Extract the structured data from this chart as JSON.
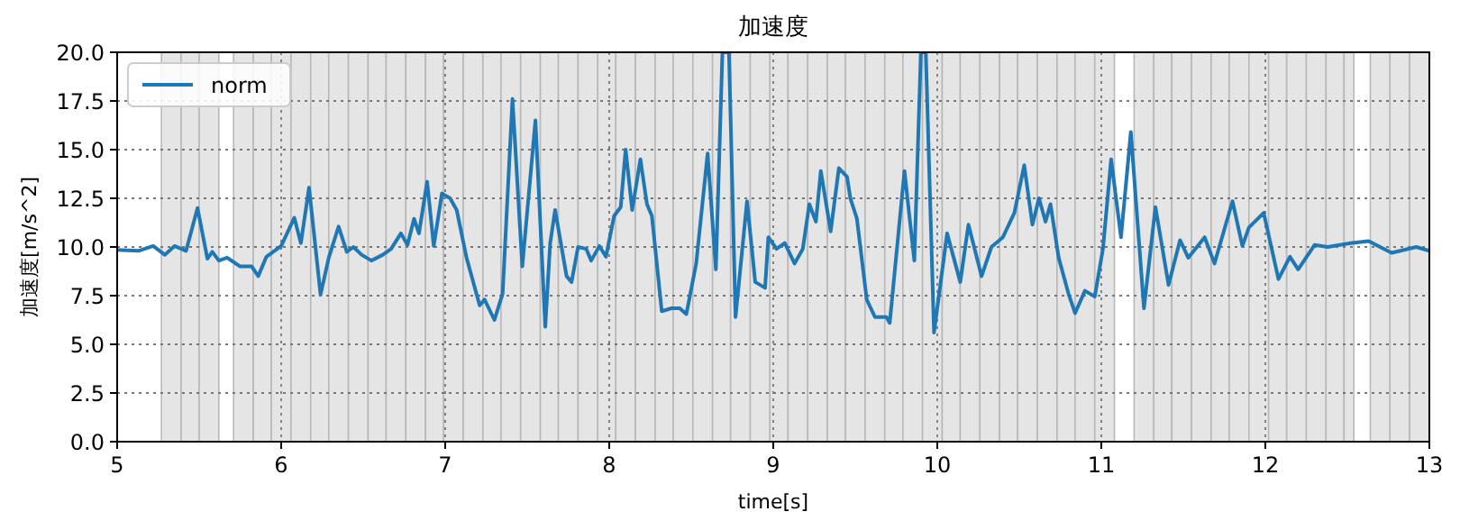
{
  "chart_data": {
    "type": "line",
    "title": "加速度",
    "xlabel": "time[s]",
    "ylabel": "加速度[m/s^2]",
    "xlim": [
      5,
      13
    ],
    "ylim": [
      0,
      20
    ],
    "xticks": [
      5,
      6,
      7,
      8,
      9,
      10,
      11,
      12,
      13
    ],
    "yticks": [
      {
        "value": 0,
        "label": "0.0"
      },
      {
        "value": 2.5,
        "label": "2.5"
      },
      {
        "value": 5,
        "label": "5.0"
      },
      {
        "value": 7.5,
        "label": "7.5"
      },
      {
        "value": 10,
        "label": "10.0"
      },
      {
        "value": 12.5,
        "label": "12.5"
      },
      {
        "value": 15,
        "label": "15.0"
      },
      {
        "value": 17.5,
        "label": "17.5"
      },
      {
        "value": 20,
        "label": "20.0"
      }
    ],
    "grid": true,
    "legend": "top left",
    "series": [
      {
        "name": "norm",
        "color": "#1f77b4",
        "x": [
          5.0,
          5.13,
          5.22,
          5.29,
          5.35,
          5.42,
          5.49,
          5.55,
          5.58,
          5.62,
          5.67,
          5.75,
          5.82,
          5.86,
          5.91,
          6.0,
          6.08,
          6.12,
          6.17,
          6.24,
          6.29,
          6.35,
          6.4,
          6.44,
          6.49,
          6.55,
          6.62,
          6.67,
          6.73,
          6.77,
          6.81,
          6.84,
          6.89,
          6.93,
          6.98,
          7.03,
          7.07,
          7.13,
          7.21,
          7.24,
          7.3,
          7.35,
          7.41,
          7.47,
          7.55,
          7.61,
          7.64,
          7.67,
          7.74,
          7.77,
          7.81,
          7.86,
          7.89,
          7.94,
          7.98,
          8.03,
          8.07,
          8.1,
          8.14,
          8.19,
          8.23,
          8.26,
          8.32,
          8.38,
          8.43,
          8.47,
          8.53,
          8.6,
          8.65,
          8.69,
          8.73,
          8.77,
          8.84,
          8.89,
          8.95,
          8.97,
          9.02,
          9.07,
          9.13,
          9.18,
          9.22,
          9.26,
          9.29,
          9.35,
          9.4,
          9.45,
          9.47,
          9.51,
          9.57,
          9.62,
          9.69,
          9.71,
          9.8,
          9.86,
          9.9,
          9.93,
          9.98,
          10.06,
          10.14,
          10.19,
          10.27,
          10.33,
          10.4,
          10.47,
          10.53,
          10.58,
          10.62,
          10.66,
          10.69,
          10.74,
          10.8,
          10.84,
          10.9,
          10.96,
          11.01,
          11.06,
          11.12,
          11.18,
          11.26,
          11.33,
          11.41,
          11.48,
          11.53,
          11.63,
          11.69,
          11.8,
          11.86,
          11.9,
          11.99,
          12.08,
          12.15,
          12.2,
          12.3,
          12.38,
          12.52,
          12.63,
          12.77,
          12.92,
          13.0
        ],
        "values": [
          9.85,
          9.8,
          10.05,
          9.6,
          10.05,
          9.8,
          12.0,
          9.4,
          9.75,
          9.3,
          9.45,
          9.0,
          9.0,
          8.5,
          9.5,
          10.05,
          11.5,
          10.2,
          13.05,
          7.55,
          9.45,
          11.05,
          9.75,
          10.0,
          9.6,
          9.3,
          9.6,
          9.9,
          10.7,
          10.1,
          11.45,
          10.7,
          13.35,
          10.05,
          12.75,
          12.5,
          11.9,
          9.45,
          7.0,
          7.3,
          6.25,
          7.6,
          17.6,
          9.0,
          16.5,
          5.9,
          10.2,
          11.9,
          8.5,
          8.2,
          10.0,
          9.9,
          9.3,
          10.05,
          9.5,
          11.6,
          12.05,
          15.0,
          11.9,
          14.5,
          12.2,
          11.6,
          6.7,
          6.85,
          6.85,
          6.55,
          9.15,
          14.8,
          8.85,
          20.0,
          20.0,
          6.4,
          12.35,
          8.2,
          7.9,
          10.5,
          9.9,
          10.2,
          9.15,
          9.9,
          12.2,
          11.3,
          13.9,
          10.8,
          14.05,
          13.6,
          12.5,
          11.45,
          7.3,
          6.4,
          6.4,
          6.1,
          13.9,
          9.3,
          20.0,
          20.0,
          5.6,
          10.7,
          8.2,
          11.15,
          8.5,
          10.0,
          10.5,
          11.75,
          14.2,
          11.15,
          12.5,
          11.3,
          12.2,
          9.45,
          7.6,
          6.6,
          7.75,
          7.45,
          9.9,
          14.5,
          10.5,
          15.9,
          6.85,
          12.05,
          8.05,
          10.35,
          9.45,
          10.5,
          9.15,
          12.35,
          10.05,
          11.0,
          11.75,
          8.35,
          9.5,
          8.85,
          10.1,
          10.0,
          10.2,
          10.3,
          9.7,
          10.0,
          9.8
        ]
      }
    ],
    "bands": [
      {
        "axis": "x",
        "from": 5.27,
        "to": 5.39,
        "color": "#e5e5e5"
      },
      {
        "axis": "x",
        "from": 5.39,
        "to": 5.5,
        "color": "#e5e5e5"
      },
      {
        "axis": "x",
        "from": 5.5,
        "to": 5.62,
        "color": "#e5e5e5"
      },
      {
        "axis": "x",
        "from": 5.71,
        "to": 5.83,
        "color": "#e5e5e5"
      },
      {
        "axis": "x",
        "from": 5.83,
        "to": 5.94,
        "color": "#e5e5e5"
      },
      {
        "axis": "x",
        "from": 5.94,
        "to": 6.06,
        "color": "#e5e5e5"
      },
      {
        "axis": "x",
        "from": 6.06,
        "to": 6.18,
        "color": "#e5e5e5"
      },
      {
        "axis": "x",
        "from": 6.18,
        "to": 6.29,
        "color": "#e5e5e5"
      },
      {
        "axis": "x",
        "from": 6.29,
        "to": 6.41,
        "color": "#e5e5e5"
      },
      {
        "axis": "x",
        "from": 6.41,
        "to": 6.53,
        "color": "#e5e5e5"
      },
      {
        "axis": "x",
        "from": 6.53,
        "to": 6.64,
        "color": "#e5e5e5"
      },
      {
        "axis": "x",
        "from": 6.64,
        "to": 6.76,
        "color": "#e5e5e5"
      },
      {
        "axis": "x",
        "from": 6.76,
        "to": 6.88,
        "color": "#e5e5e5"
      },
      {
        "axis": "x",
        "from": 6.88,
        "to": 6.99,
        "color": "#e5e5e5"
      },
      {
        "axis": "x",
        "from": 6.99,
        "to": 7.11,
        "color": "#e5e5e5"
      },
      {
        "axis": "x",
        "from": 7.11,
        "to": 7.23,
        "color": "#e5e5e5"
      },
      {
        "axis": "x",
        "from": 7.23,
        "to": 7.34,
        "color": "#e5e5e5"
      },
      {
        "axis": "x",
        "from": 7.34,
        "to": 7.46,
        "color": "#e5e5e5"
      },
      {
        "axis": "x",
        "from": 7.46,
        "to": 7.58,
        "color": "#e5e5e5"
      },
      {
        "axis": "x",
        "from": 7.58,
        "to": 7.69,
        "color": "#e5e5e5"
      },
      {
        "axis": "x",
        "from": 7.69,
        "to": 7.81,
        "color": "#e5e5e5"
      },
      {
        "axis": "x",
        "from": 7.81,
        "to": 7.93,
        "color": "#e5e5e5"
      },
      {
        "axis": "x",
        "from": 7.93,
        "to": 8.04,
        "color": "#e5e5e5"
      },
      {
        "axis": "x",
        "from": 8.04,
        "to": 8.16,
        "color": "#e5e5e5"
      },
      {
        "axis": "x",
        "from": 8.16,
        "to": 8.28,
        "color": "#e5e5e5"
      },
      {
        "axis": "x",
        "from": 8.28,
        "to": 8.39,
        "color": "#e5e5e5"
      },
      {
        "axis": "x",
        "from": 8.39,
        "to": 8.51,
        "color": "#e5e5e5"
      },
      {
        "axis": "x",
        "from": 8.51,
        "to": 8.63,
        "color": "#e5e5e5"
      },
      {
        "axis": "x",
        "from": 8.63,
        "to": 8.74,
        "color": "#e5e5e5"
      },
      {
        "axis": "x",
        "from": 8.74,
        "to": 8.86,
        "color": "#e5e5e5"
      },
      {
        "axis": "x",
        "from": 8.86,
        "to": 8.98,
        "color": "#e5e5e5"
      },
      {
        "axis": "x",
        "from": 8.98,
        "to": 9.09,
        "color": "#e5e5e5"
      },
      {
        "axis": "x",
        "from": 9.09,
        "to": 9.21,
        "color": "#e5e5e5"
      },
      {
        "axis": "x",
        "from": 9.21,
        "to": 9.33,
        "color": "#e5e5e5"
      },
      {
        "axis": "x",
        "from": 9.33,
        "to": 9.44,
        "color": "#e5e5e5"
      },
      {
        "axis": "x",
        "from": 9.44,
        "to": 9.56,
        "color": "#e5e5e5"
      },
      {
        "axis": "x",
        "from": 9.56,
        "to": 9.68,
        "color": "#e5e5e5"
      },
      {
        "axis": "x",
        "from": 9.68,
        "to": 9.79,
        "color": "#e5e5e5"
      },
      {
        "axis": "x",
        "from": 9.79,
        "to": 9.91,
        "color": "#e5e5e5"
      },
      {
        "axis": "x",
        "from": 9.91,
        "to": 10.03,
        "color": "#e5e5e5"
      },
      {
        "axis": "x",
        "from": 10.03,
        "to": 10.14,
        "color": "#e5e5e5"
      },
      {
        "axis": "x",
        "from": 10.14,
        "to": 10.26,
        "color": "#e5e5e5"
      },
      {
        "axis": "x",
        "from": 10.26,
        "to": 10.38,
        "color": "#e5e5e5"
      },
      {
        "axis": "x",
        "from": 10.38,
        "to": 10.49,
        "color": "#e5e5e5"
      },
      {
        "axis": "x",
        "from": 10.49,
        "to": 10.61,
        "color": "#e5e5e5"
      },
      {
        "axis": "x",
        "from": 10.61,
        "to": 10.73,
        "color": "#e5e5e5"
      },
      {
        "axis": "x",
        "from": 10.73,
        "to": 10.84,
        "color": "#e5e5e5"
      },
      {
        "axis": "x",
        "from": 10.84,
        "to": 10.96,
        "color": "#e5e5e5"
      },
      {
        "axis": "x",
        "from": 10.96,
        "to": 11.08,
        "color": "#e5e5e5"
      },
      {
        "axis": "x",
        "from": 11.2,
        "to": 11.32,
        "color": "#e5e5e5"
      },
      {
        "axis": "x",
        "from": 11.32,
        "to": 11.43,
        "color": "#e5e5e5"
      },
      {
        "axis": "x",
        "from": 11.43,
        "to": 11.55,
        "color": "#e5e5e5"
      },
      {
        "axis": "x",
        "from": 11.55,
        "to": 11.67,
        "color": "#e5e5e5"
      },
      {
        "axis": "x",
        "from": 11.67,
        "to": 11.78,
        "color": "#e5e5e5"
      },
      {
        "axis": "x",
        "from": 11.78,
        "to": 11.9,
        "color": "#e5e5e5"
      },
      {
        "axis": "x",
        "from": 11.9,
        "to": 12.02,
        "color": "#e5e5e5"
      },
      {
        "axis": "x",
        "from": 12.02,
        "to": 12.13,
        "color": "#e5e5e5"
      },
      {
        "axis": "x",
        "from": 12.13,
        "to": 12.25,
        "color": "#e5e5e5"
      },
      {
        "axis": "x",
        "from": 12.25,
        "to": 12.37,
        "color": "#e5e5e5"
      },
      {
        "axis": "x",
        "from": 12.37,
        "to": 12.48,
        "color": "#e5e5e5"
      },
      {
        "axis": "x",
        "from": 12.48,
        "to": 12.54,
        "color": "#e5e5e5"
      },
      {
        "axis": "x",
        "from": 12.64,
        "to": 12.76,
        "color": "#e5e5e5"
      },
      {
        "axis": "x",
        "from": 12.76,
        "to": 12.88,
        "color": "#e5e5e5"
      },
      {
        "axis": "x",
        "from": 12.88,
        "to": 13.0,
        "color": "#e5e5e5"
      }
    ]
  }
}
